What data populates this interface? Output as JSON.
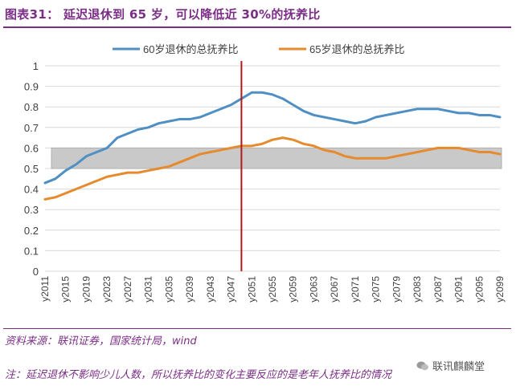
{
  "header": {
    "title": "图表31：   延迟退休到 65 岁，可以降低近 30%的抚养比"
  },
  "footer": {
    "source": "资料来源：联讯证券，国家统计局，wind",
    "note": "注：延迟退休不影响少儿人数，所以抚养比的变化主要反应的是老年人抚养比的情况",
    "watermark": "联讯麒麟堂"
  },
  "colors": {
    "accent": "#7b2e86",
    "series60": "#4f8fc4",
    "series65": "#e68a2e",
    "band": "#c9c9c9",
    "marker": "#b01a1a"
  },
  "chart_data": {
    "type": "line",
    "title": "",
    "xlabel": "",
    "ylabel": "",
    "ylim": [
      0,
      1
    ],
    "yticks": [
      0,
      0.1,
      0.2,
      0.3,
      0.4,
      0.5,
      0.6,
      0.7,
      0.8,
      0.9,
      1
    ],
    "ytick_labels": [
      "0",
      "0.1",
      "0.2",
      "0.3",
      "0.4",
      "0.5",
      "0.6",
      "0.7",
      "0.8",
      "0.9",
      "1"
    ],
    "xticks": [
      "y2011",
      "y2015",
      "y2019",
      "y2023",
      "y2027",
      "y2031",
      "y2035",
      "y2039",
      "y2043",
      "y2047",
      "y2051",
      "y2055",
      "y2059",
      "y2063",
      "y2067",
      "y2071",
      "y2075",
      "y2079",
      "y2083",
      "y2087",
      "y2091",
      "y2095",
      "y2099"
    ],
    "legend": {
      "position": "top",
      "entries": [
        "60岁退休的总抚养比",
        "65岁退休的总抚养比"
      ]
    },
    "band": {
      "from": 0.5,
      "to": 0.6
    },
    "vline_year": 2049,
    "x": [
      2011,
      2013,
      2015,
      2017,
      2019,
      2021,
      2023,
      2025,
      2027,
      2029,
      2031,
      2033,
      2035,
      2037,
      2039,
      2041,
      2043,
      2045,
      2047,
      2049,
      2051,
      2053,
      2055,
      2057,
      2059,
      2061,
      2063,
      2065,
      2067,
      2069,
      2071,
      2073,
      2075,
      2077,
      2079,
      2081,
      2083,
      2085,
      2087,
      2089,
      2091,
      2093,
      2095,
      2097,
      2099
    ],
    "series": [
      {
        "name": "60岁退休的总抚养比",
        "values": [
          0.43,
          0.45,
          0.49,
          0.52,
          0.56,
          0.58,
          0.6,
          0.65,
          0.67,
          0.69,
          0.7,
          0.72,
          0.73,
          0.74,
          0.74,
          0.75,
          0.77,
          0.79,
          0.81,
          0.84,
          0.87,
          0.87,
          0.86,
          0.84,
          0.81,
          0.78,
          0.76,
          0.75,
          0.74,
          0.73,
          0.72,
          0.73,
          0.75,
          0.76,
          0.77,
          0.78,
          0.79,
          0.79,
          0.79,
          0.78,
          0.77,
          0.77,
          0.76,
          0.76,
          0.75
        ]
      },
      {
        "name": "65岁退休的总抚养比",
        "values": [
          0.35,
          0.36,
          0.38,
          0.4,
          0.42,
          0.44,
          0.46,
          0.47,
          0.48,
          0.48,
          0.49,
          0.5,
          0.51,
          0.53,
          0.55,
          0.57,
          0.58,
          0.59,
          0.6,
          0.61,
          0.61,
          0.62,
          0.64,
          0.65,
          0.64,
          0.62,
          0.61,
          0.59,
          0.58,
          0.56,
          0.55,
          0.55,
          0.55,
          0.55,
          0.56,
          0.57,
          0.58,
          0.59,
          0.6,
          0.6,
          0.6,
          0.59,
          0.58,
          0.58,
          0.57
        ]
      }
    ]
  }
}
